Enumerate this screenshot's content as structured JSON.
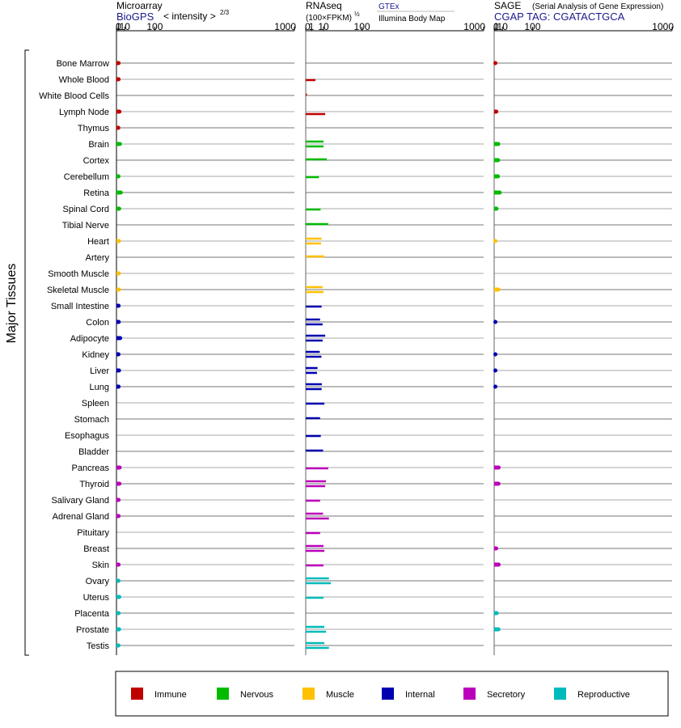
{
  "chart_data": {
    "type": "bar",
    "orientation": "horizontal",
    "ylabel": "Major Tissues",
    "categories": [
      "Bone Marrow",
      "Whole Blood",
      "White Blood Cells",
      "Lymph Node",
      "Thymus",
      "Brain",
      "Cortex",
      "Cerebellum",
      "Retina",
      "Spinal Cord",
      "Tibial Nerve",
      "Heart",
      "Artery",
      "Smooth Muscle",
      "Skeletal Muscle",
      "Small Intestine",
      "Colon",
      "Adipocyte",
      "Kidney",
      "Liver",
      "Lung",
      "Spleen",
      "Stomach",
      "Esophagus",
      "Bladder",
      "Pancreas",
      "Thyroid",
      "Salivary Gland",
      "Adrenal Gland",
      "Pituitary",
      "Breast",
      "Skin",
      "Ovary",
      "Uterus",
      "Placenta",
      "Prostate",
      "Testis"
    ],
    "groups": [
      "Immune",
      "Immune",
      "Immune",
      "Immune",
      "Immune",
      "Nervous",
      "Nervous",
      "Nervous",
      "Nervous",
      "Nervous",
      "Nervous",
      "Muscle",
      "Muscle",
      "Muscle",
      "Muscle",
      "Internal",
      "Internal",
      "Internal",
      "Internal",
      "Internal",
      "Internal",
      "Internal",
      "Internal",
      "Internal",
      "Internal",
      "Secretory",
      "Secretory",
      "Secretory",
      "Secretory",
      "Secretory",
      "Secretory",
      "Secretory",
      "Reproductive",
      "Reproductive",
      "Reproductive",
      "Reproductive",
      "Reproductive"
    ],
    "legend": [
      {
        "name": "Immune",
        "color": "#c00000"
      },
      {
        "name": "Nervous",
        "color": "#00bb00"
      },
      {
        "name": "Muscle",
        "color": "#ffc000"
      },
      {
        "name": "Internal",
        "color": "#0000b0"
      },
      {
        "name": "Secretory",
        "color": "#bb00bb"
      },
      {
        "name": "Reproductive",
        "color": "#00bbbb"
      }
    ],
    "legend_position": "bottom",
    "panels": [
      {
        "title": "Microarray",
        "source": "BioGPS",
        "unit_label": "< intensity >",
        "unit_exponent": "2/3",
        "scale": "power-2/3",
        "ticks": [
          "0",
          "1",
          "10",
          "100",
          "1000"
        ],
        "tick_values": [
          0,
          1,
          10,
          100,
          1000
        ],
        "xlim": [
          0,
          1000
        ],
        "values": [
          [
            1.3
          ],
          [
            1.3
          ],
          [
            null
          ],
          [
            2.2
          ],
          [
            1.1
          ],
          [
            2.7
          ],
          [
            null
          ],
          [
            1.2
          ],
          [
            3.8
          ],
          [
            1.9
          ],
          [
            null
          ],
          [
            1.6
          ],
          [
            null
          ],
          [
            1.5
          ],
          [
            1.6
          ],
          [
            1.3
          ],
          [
            1.4
          ],
          [
            3.0
          ],
          [
            1.2
          ],
          [
            1.7
          ],
          [
            1.3
          ],
          [
            null
          ],
          [
            null
          ],
          [
            null
          ],
          [
            null
          ],
          [
            2.4
          ],
          [
            2.2
          ],
          [
            1.3
          ],
          [
            1.3
          ],
          [
            null
          ],
          [
            null
          ],
          [
            1.3
          ],
          [
            1.2
          ],
          [
            2.0
          ],
          [
            1.3
          ],
          [
            1.8
          ],
          [
            1.2
          ]
        ]
      },
      {
        "title": "RNAseq",
        "source": "GTEx",
        "source2": "Illumina Body Map",
        "unit_label": "(100×FPKM)",
        "unit_exponent": "½",
        "scale": "sqrt",
        "ticks": [
          "0",
          "1",
          "10",
          "100",
          "1000"
        ],
        "tick_values": [
          0,
          1,
          10,
          100,
          1000
        ],
        "xlim": [
          0,
          1000
        ],
        "values": [
          [
            null
          ],
          [
            3
          ],
          [
            0.01
          ],
          [
            null,
            12
          ],
          [
            null
          ],
          [
            10,
            10
          ],
          [
            14
          ],
          [
            5.5
          ],
          [
            null
          ],
          [
            7
          ],
          [
            16
          ],
          [
            8,
            7.5
          ],
          [
            11
          ],
          [
            null
          ],
          [
            9,
            10
          ],
          [
            8
          ],
          [
            6.5,
            9
          ],
          [
            12,
            9
          ],
          [
            6.2,
            7.8
          ],
          [
            4.4,
            4
          ],
          [
            8.2,
            8
          ],
          [
            11
          ],
          [
            6.5
          ],
          [
            7.2
          ],
          [
            9.5
          ],
          [
            16
          ],
          [
            13,
            12
          ],
          [
            6.5
          ],
          [
            9.5,
            17
          ],
          [
            6.5
          ],
          [
            10,
            11
          ],
          [
            10
          ],
          [
            17,
            20
          ],
          [
            10
          ],
          [
            null
          ],
          [
            11,
            13
          ],
          [
            11,
            17
          ]
        ]
      },
      {
        "title": "SAGE",
        "subtitle": "(Serial Analysis of Gene Expression)",
        "source": "CGAP  TAG: CGATACTGCA",
        "scale": "power-2/3",
        "ticks": [
          "0",
          "1",
          "10",
          "100",
          "1000"
        ],
        "tick_values": [
          0,
          1,
          10,
          100,
          1000
        ],
        "xlim": [
          0,
          1000
        ],
        "values": [
          [
            0.02
          ],
          [
            null
          ],
          [
            null
          ],
          [
            1.3
          ],
          [
            null
          ],
          [
            3.5
          ],
          [
            3.3
          ],
          [
            3.1
          ],
          [
            5.5
          ],
          [
            1.5
          ],
          [
            null
          ],
          [
            0.05
          ],
          [
            null
          ],
          [
            null
          ],
          [
            3.6
          ],
          [
            null
          ],
          [
            0.04
          ],
          [
            null
          ],
          [
            0.03
          ],
          [
            0.03
          ],
          [
            0.03
          ],
          [
            null
          ],
          [
            null
          ],
          [
            null
          ],
          [
            null
          ],
          [
            4.0
          ],
          [
            3.7
          ],
          [
            null
          ],
          [
            null
          ],
          [
            null
          ],
          [
            1.2
          ],
          [
            4.0
          ],
          [
            null
          ],
          [
            null
          ],
          [
            1.7
          ],
          [
            3.7
          ],
          [
            null
          ]
        ]
      }
    ]
  }
}
